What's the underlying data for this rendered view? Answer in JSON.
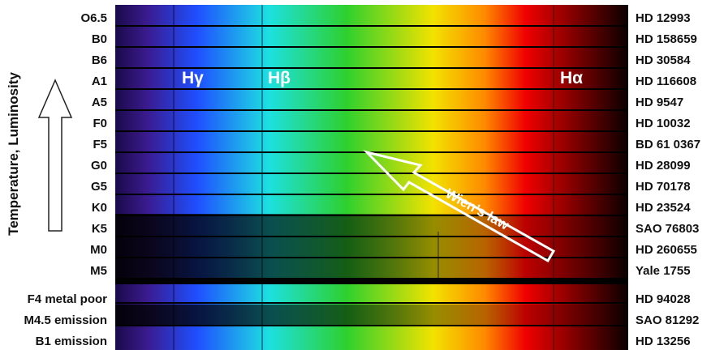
{
  "axis_label": "Temperature, Luminosity",
  "arrow_label": "Wien’s law",
  "lines": {
    "h_gamma": "Hγ",
    "h_beta": "Hβ",
    "h_alpha": "Hα"
  },
  "spectra": [
    {
      "type": "O6.5",
      "star": "HD 12993"
    },
    {
      "type": "B0",
      "star": "HD 158659"
    },
    {
      "type": "B6",
      "star": "HD 30584"
    },
    {
      "type": "A1",
      "star": "HD 116608"
    },
    {
      "type": "A5",
      "star": "HD 9547"
    },
    {
      "type": "F0",
      "star": "HD 10032"
    },
    {
      "type": "F5",
      "star": "BD 61 0367"
    },
    {
      "type": "G0",
      "star": "HD 28099"
    },
    {
      "type": "G5",
      "star": "HD 70178"
    },
    {
      "type": "K0",
      "star": "HD 23524"
    },
    {
      "type": "K5",
      "star": "SAO 76803"
    },
    {
      "type": "M0",
      "star": "HD 260655"
    },
    {
      "type": "M5",
      "star": "Yale 1755"
    }
  ],
  "special_spectra": [
    {
      "type": "F4 metal poor",
      "star": "HD 94028"
    },
    {
      "type": "M4.5 emission",
      "star": "SAO 81292"
    },
    {
      "type": "B1 emission",
      "star": "HD 13256"
    }
  ],
  "colors": {
    "violet": "#3a1a8c",
    "blue": "#1f4fff",
    "cyan": "#1de0e0",
    "green": "#2ed02e",
    "yellow": "#f2e200",
    "orange": "#ff8a00",
    "red": "#f00000",
    "dark_red": "#200000"
  }
}
